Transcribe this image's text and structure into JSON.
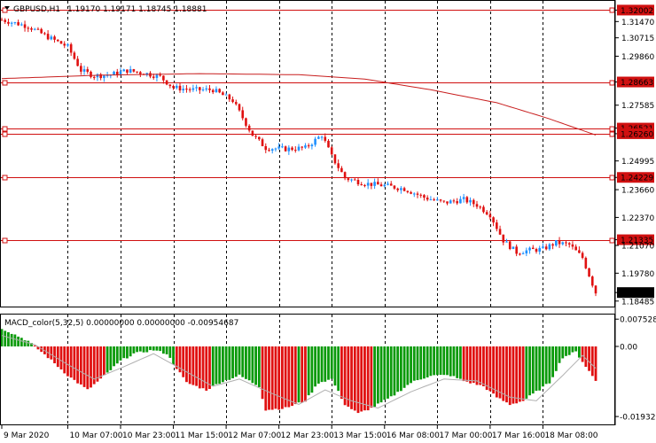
{
  "header": {
    "symbol": "GBPUSD,H1",
    "ohlc": "1.19170 1.19171 1.18745 1.18881"
  },
  "colors": {
    "bull": "#1E90FF",
    "bear": "#E01010",
    "level": "#D01010",
    "ma": "#C81E1E",
    "macd_up": "#0A9A0A",
    "macd_down": "#E01010",
    "signal": "#B0B0B0",
    "grid": "#000000"
  },
  "chart_data": [
    {
      "type": "candlestick",
      "title": "GBPUSD,H1",
      "y_ticks": [
        "1.32002",
        "1.31470",
        "1.30715",
        "1.29860",
        "1.28663",
        "1.27585",
        "1.26521",
        "1.26260",
        "1.24995",
        "1.24229",
        "1.23660",
        "1.22370",
        "1.21335",
        "1.21070",
        "1.19780",
        "1.18881",
        "1.18485"
      ],
      "ylim": [
        1.1823,
        1.3243
      ],
      "last_price": "1.18881",
      "levels": [
        {
          "price": 1.32002,
          "label": "1.32002"
        },
        {
          "price": 1.28663,
          "label": "1.28663"
        },
        {
          "price": 1.26521,
          "label": "1.26521"
        },
        {
          "price": 1.2626,
          "label": "1.26260"
        },
        {
          "price": 1.24229,
          "label": "1.24229"
        },
        {
          "price": 1.21335,
          "label": "1.21335"
        }
      ],
      "moving_average": [
        [
          0,
          1.2882
        ],
        [
          30,
          1.2898
        ],
        [
          60,
          1.2905
        ],
        [
          90,
          1.29
        ],
        [
          110,
          1.288
        ],
        [
          130,
          1.283
        ],
        [
          150,
          1.277
        ],
        [
          165,
          1.27
        ],
        [
          180,
          1.262
        ]
      ],
      "anchors": [
        [
          0,
          1.3155
        ],
        [
          8,
          1.3125
        ],
        [
          14,
          1.3075
        ],
        [
          20,
          1.303
        ],
        [
          24,
          1.292
        ],
        [
          28,
          1.2895
        ],
        [
          33,
          1.29
        ],
        [
          38,
          1.292
        ],
        [
          44,
          1.2905
        ],
        [
          48,
          1.289
        ],
        [
          52,
          1.284
        ],
        [
          58,
          1.283
        ],
        [
          64,
          1.283
        ],
        [
          70,
          1.278
        ],
        [
          76,
          1.262
        ],
        [
          80,
          1.256
        ],
        [
          86,
          1.2555
        ],
        [
          92,
          1.256
        ],
        [
          97,
          1.262
        ],
        [
          100,
          1.252
        ],
        [
          104,
          1.242
        ],
        [
          110,
          1.2395
        ],
        [
          116,
          1.2385
        ],
        [
          122,
          1.237
        ],
        [
          128,
          1.233
        ],
        [
          134,
          1.2305
        ],
        [
          140,
          1.232
        ],
        [
          144,
          1.2295
        ],
        [
          148,
          1.225
        ],
        [
          152,
          1.213
        ],
        [
          156,
          1.2075
        ],
        [
          160,
          1.2085
        ],
        [
          164,
          1.209
        ],
        [
          168,
          1.212
        ],
        [
          172,
          1.211
        ],
        [
          176,
          1.205
        ],
        [
          180,
          1.1888
        ]
      ],
      "x_ticks": [
        "9 Mar 2020",
        "10 Mar 07:00",
        "10 Mar 23:00",
        "11 Mar 15:00",
        "12 Mar 07:00",
        "12 Mar 23:00",
        "13 Mar 15:00",
        "16 Mar 08:00",
        "17 Mar 00:00",
        "17 Mar 16:00",
        "18 Mar 08:00"
      ]
    },
    {
      "type": "bar",
      "title": "MACD_color(5,32,5) 0.00000000 0.00000000 -0.00954687",
      "y_ticks": [
        "0.0075286",
        "0.00",
        "-0.019329"
      ],
      "ylim": [
        -0.0215,
        0.0088
      ],
      "macd_anchors": [
        [
          0,
          0.005
        ],
        [
          8,
          0.0015
        ],
        [
          14,
          -0.003
        ],
        [
          20,
          -0.008
        ],
        [
          26,
          -0.012
        ],
        [
          30,
          -0.009
        ],
        [
          36,
          -0.004
        ],
        [
          40,
          -0.002
        ],
        [
          46,
          -0.001
        ],
        [
          50,
          -0.002
        ],
        [
          56,
          -0.01
        ],
        [
          62,
          -0.012
        ],
        [
          66,
          -0.01
        ],
        [
          72,
          -0.008
        ],
        [
          78,
          -0.011
        ],
        [
          80,
          -0.0175
        ],
        [
          86,
          -0.017
        ],
        [
          92,
          -0.015
        ],
        [
          96,
          -0.01
        ],
        [
          100,
          -0.009
        ],
        [
          104,
          -0.016
        ],
        [
          108,
          -0.0185
        ],
        [
          112,
          -0.017
        ],
        [
          118,
          -0.014
        ],
        [
          124,
          -0.01
        ],
        [
          130,
          -0.008
        ],
        [
          136,
          -0.008
        ],
        [
          140,
          -0.0095
        ],
        [
          146,
          -0.011
        ],
        [
          150,
          -0.014
        ],
        [
          154,
          -0.016
        ],
        [
          158,
          -0.015
        ],
        [
          162,
          -0.0125
        ],
        [
          166,
          -0.01
        ],
        [
          170,
          -0.003
        ],
        [
          174,
          -0.0015
        ],
        [
          180,
          -0.0095
        ]
      ],
      "signal_anchors": [
        [
          0,
          0.003
        ],
        [
          10,
          0.0005
        ],
        [
          20,
          -0.005
        ],
        [
          28,
          -0.009
        ],
        [
          36,
          -0.006
        ],
        [
          46,
          -0.002
        ],
        [
          56,
          -0.007
        ],
        [
          64,
          -0.011
        ],
        [
          72,
          -0.009
        ],
        [
          82,
          -0.013
        ],
        [
          90,
          -0.016
        ],
        [
          98,
          -0.012
        ],
        [
          106,
          -0.015
        ],
        [
          114,
          -0.017
        ],
        [
          124,
          -0.0125
        ],
        [
          134,
          -0.009
        ],
        [
          144,
          -0.0095
        ],
        [
          154,
          -0.014
        ],
        [
          162,
          -0.015
        ],
        [
          170,
          -0.008
        ],
        [
          176,
          -0.0025
        ],
        [
          180,
          -0.006
        ]
      ]
    }
  ]
}
